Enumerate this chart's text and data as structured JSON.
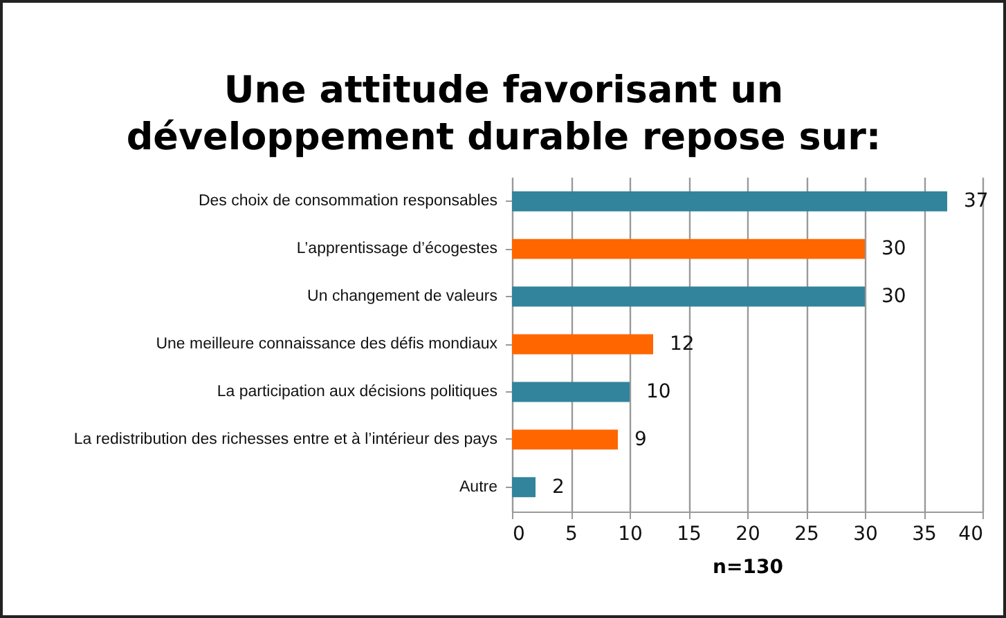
{
  "chart_data": {
    "type": "bar",
    "orientation": "horizontal",
    "title": "Une attitude favorisant un développement durable repose sur:",
    "xlabel": "n=130",
    "categories": [
      "Des choix de consommation responsables",
      "L’apprentissage d’écogestes",
      "Un changement de valeurs",
      "Une meilleure connaissance des défis mondiaux",
      "La participation aux décisions politiques",
      "La redistribution des richesses entre et à l’intérieur des pays",
      "Autre"
    ],
    "values": [
      37,
      30,
      30,
      12,
      10,
      9,
      2
    ],
    "colors": [
      "#31849b",
      "#ff6600",
      "#31849b",
      "#ff6600",
      "#31849b",
      "#ff6600",
      "#31849b"
    ],
    "xlim": [
      0,
      40
    ],
    "xticks": [
      0,
      5,
      10,
      15,
      20,
      25,
      30,
      35,
      40
    ],
    "grid": "x",
    "data_labels": true
  }
}
